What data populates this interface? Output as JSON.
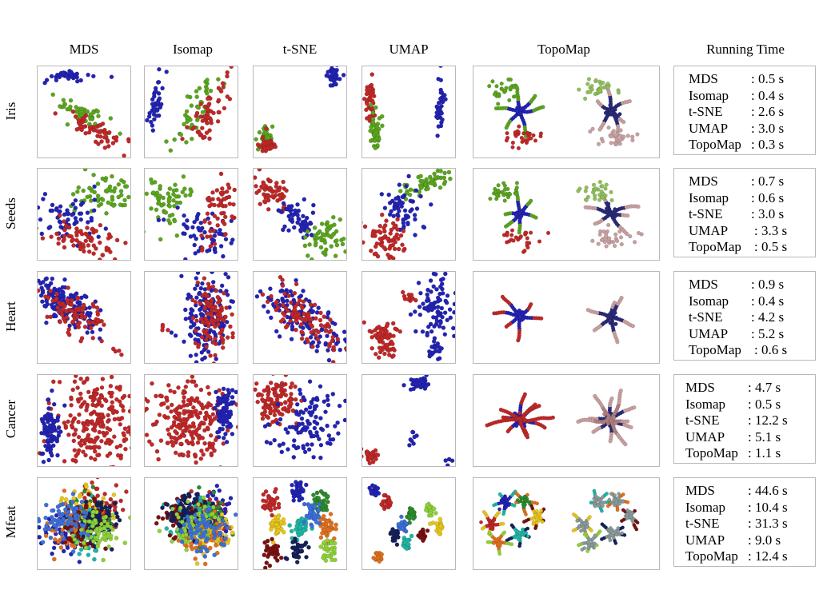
{
  "columns": [
    "MDS",
    "Isomap",
    "t-SNE",
    "UMAP",
    "TopoMap",
    "Running Time"
  ],
  "rows": [
    {
      "name": "Iris",
      "times": [
        {
          "method": "MDS",
          "value": ": 0.5 s"
        },
        {
          "method": "Isomap",
          "value": ": 0.4 s"
        },
        {
          "method": "t-SNE",
          "value": ": 2.6 s"
        },
        {
          "method": "UMAP",
          "value": ": 3.0 s"
        },
        {
          "method": "TopoMap",
          "value": ": 0.3 s"
        }
      ]
    },
    {
      "name": "Seeds",
      "times": [
        {
          "method": "MDS",
          "value": ": 0.7 s"
        },
        {
          "method": "Isomap",
          "value": ": 0.6 s"
        },
        {
          "method": "t-SNE",
          "value": ": 3.0 s"
        },
        {
          "method": "UMAP",
          "value": ": 3.3 s"
        },
        {
          "method": "TopoMap",
          "value": ": 0.5 s"
        }
      ]
    },
    {
      "name": "Heart",
      "times": [
        {
          "method": "MDS",
          "value": ": 0.9 s"
        },
        {
          "method": "Isomap",
          "value": ": 0.4 s"
        },
        {
          "method": "t-SNE",
          "value": ": 4.2 s"
        },
        {
          "method": "UMAP",
          "value": ": 5.2 s"
        },
        {
          "method": "TopoMap",
          "value": ": 0.6 s"
        }
      ]
    },
    {
      "name": "Cancer",
      "times": [
        {
          "method": "MDS",
          "value": ": 4.7 s"
        },
        {
          "method": "Isomap",
          "value": ": 0.5 s"
        },
        {
          "method": "t-SNE",
          "value": ": 12.2 s"
        },
        {
          "method": "UMAP",
          "value": ": 5.1 s"
        },
        {
          "method": "TopoMap",
          "value": ": 1.1 s"
        }
      ]
    },
    {
      "name": "Mfeat",
      "times": [
        {
          "method": "MDS",
          "value": ": 44.6 s"
        },
        {
          "method": "Isomap",
          "value": ": 10.4 s"
        },
        {
          "method": "t-SNE",
          "value": ": 31.3 s"
        },
        {
          "method": "UMAP",
          "value": ": 9.0 s"
        },
        {
          "method": "TopoMap",
          "value": ": 12.4 s"
        }
      ]
    }
  ],
  "colors": {
    "class_a": "#2323b4",
    "class_b": "#c02828",
    "class_c": "#5aa51e",
    "border": "#b9b9b9",
    "mfeat": [
      "#c02828",
      "#2323b4",
      "#2e8b2e",
      "#e6c51e",
      "#1fb5a6",
      "#e0701e",
      "#7a1010",
      "#14205a",
      "#8fd13a",
      "#3d6fd8"
    ]
  }
}
